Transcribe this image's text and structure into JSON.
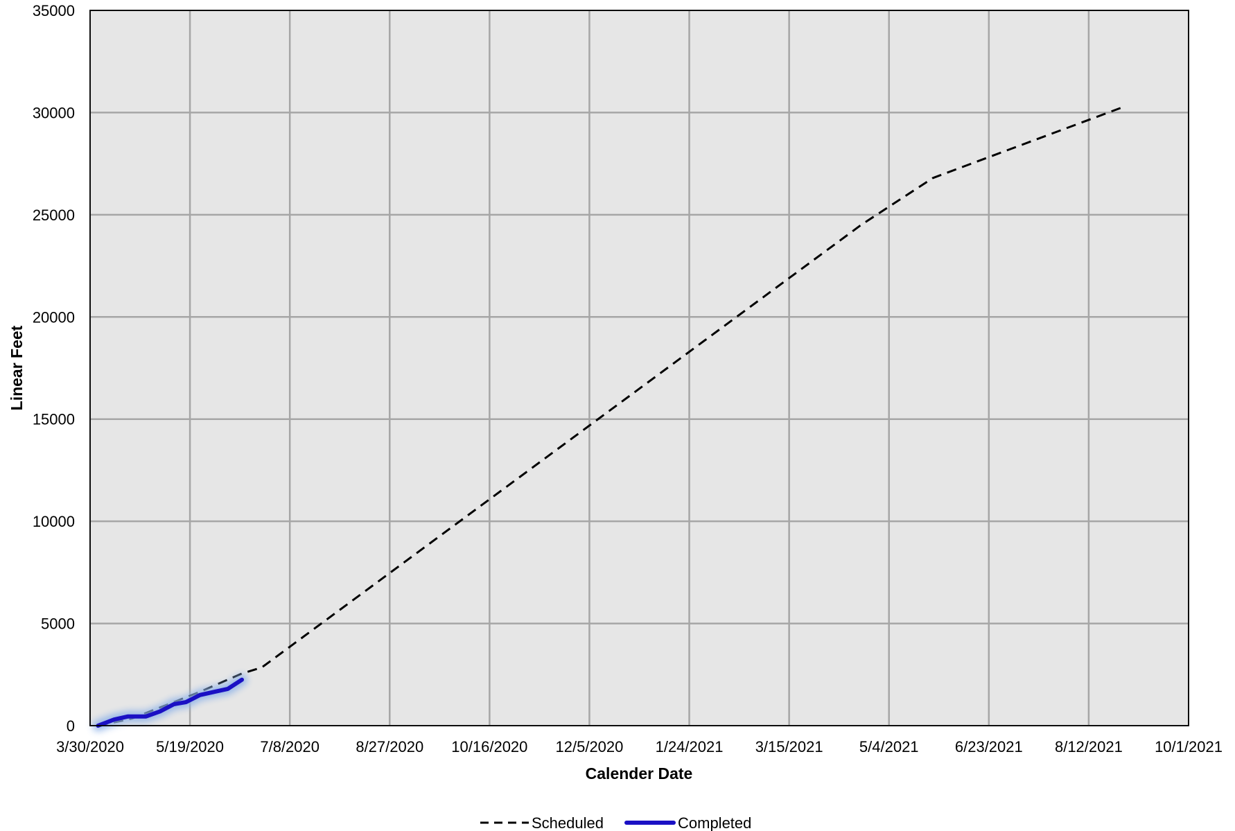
{
  "chart_data": {
    "type": "line",
    "title": "",
    "xlabel": "Calender Date",
    "ylabel": "Linear Feet",
    "x_tick_labels": [
      "3/30/2020",
      "5/19/2020",
      "7/8/2020",
      "8/27/2020",
      "10/16/2020",
      "12/5/2020",
      "1/24/2021",
      "3/15/2021",
      "5/4/2021",
      "6/23/2021",
      "8/12/2021",
      "10/1/2021"
    ],
    "y_tick_labels": [
      "0",
      "5000",
      "10000",
      "15000",
      "20000",
      "25000",
      "30000",
      "35000"
    ],
    "xlim": [
      "2020-03-30",
      "2021-10-01"
    ],
    "ylim": [
      0,
      35000
    ],
    "grid": true,
    "plot_background": "#e6e6e6",
    "legend_position": "bottom-center",
    "series": [
      {
        "name": "Scheduled",
        "style": "dashed",
        "color": "#000000",
        "x": [
          "2020-04-03",
          "2020-04-20",
          "2020-05-07",
          "2020-05-24",
          "2020-06-14",
          "2020-06-24",
          "2021-04-20",
          "2021-05-26",
          "2021-08-30"
        ],
        "y": [
          0,
          350,
          1000,
          1650,
          2550,
          2850,
          24500,
          26800,
          30300
        ]
      },
      {
        "name": "Completed",
        "style": "solid",
        "color": "#1a10c4",
        "glow_color": "#8fb3e8",
        "x": [
          "2020-04-03",
          "2020-04-11",
          "2020-04-18",
          "2020-04-27",
          "2020-05-04",
          "2020-05-11",
          "2020-05-17",
          "2020-05-24",
          "2020-05-31",
          "2020-06-07",
          "2020-06-14"
        ],
        "y": [
          0,
          300,
          450,
          450,
          700,
          1050,
          1150,
          1500,
          1650,
          1800,
          2250
        ]
      }
    ]
  }
}
